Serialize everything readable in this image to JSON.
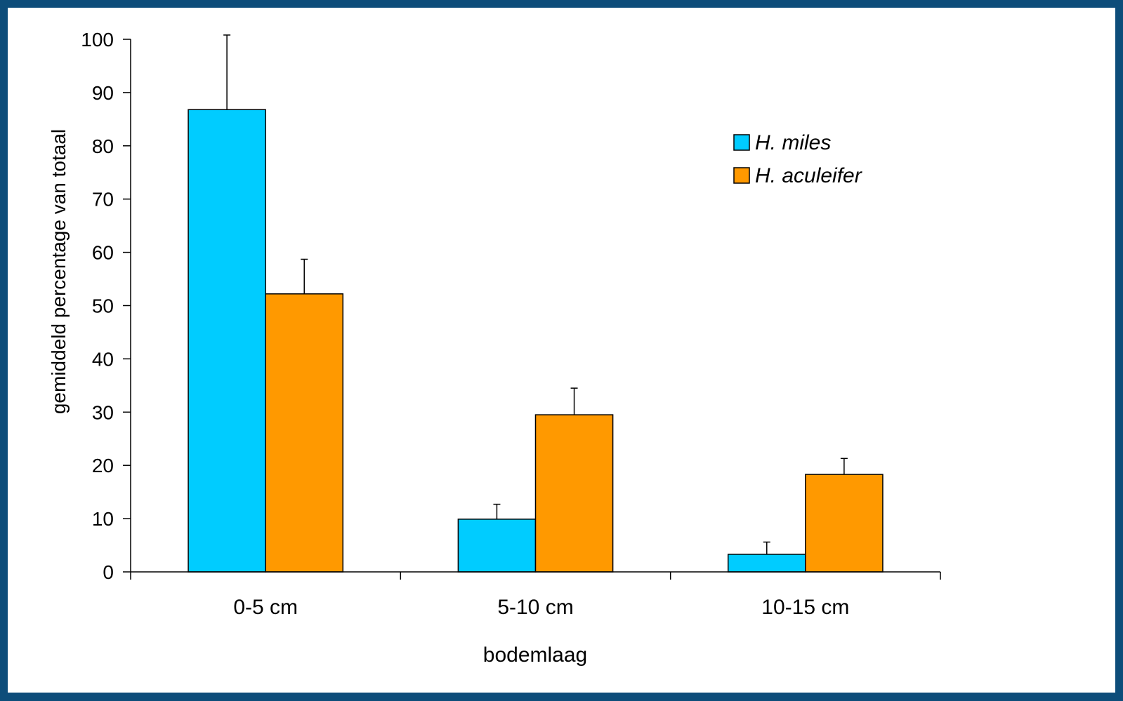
{
  "chart_data": {
    "type": "bar",
    "xlabel": "bodemlaag",
    "ylabel": "gemiddeld percentage van totaal",
    "ylim": [
      0,
      100
    ],
    "yticks": [
      "0",
      "10",
      "20",
      "30",
      "40",
      "50",
      "60",
      "70",
      "80",
      "90",
      "100"
    ],
    "categories": [
      "0-5 cm",
      "5-10 cm",
      "10-15 cm"
    ],
    "legend_position": "top-right",
    "grid": false,
    "series": [
      {
        "name": "H. miles",
        "color": "#00ccff",
        "values": [
          86.8,
          9.9,
          3.3
        ],
        "errors": [
          14.0,
          2.8,
          2.3
        ]
      },
      {
        "name": "H. aculeifer",
        "color": "#ff9900",
        "values": [
          52.2,
          29.5,
          18.3
        ],
        "errors": [
          6.5,
          5.0,
          3.0
        ]
      }
    ]
  }
}
